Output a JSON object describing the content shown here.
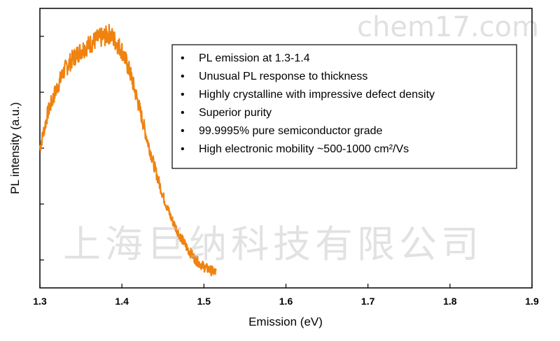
{
  "chart_data": {
    "type": "line",
    "title": "",
    "xlabel": "Emission (eV)",
    "ylabel": "PL intensity (a.u.)",
    "xlim": [
      1.3,
      1.9
    ],
    "ylim": [
      0,
      1.0
    ],
    "x_ticks": [
      "1.3",
      "1.4",
      "1.5",
      "1.6",
      "1.7",
      "1.8",
      "1.9"
    ],
    "y_tick_values": [
      0.1,
      0.3,
      0.5,
      0.7,
      0.9
    ],
    "y_tick_labels_shown": false,
    "grid": false,
    "series": [
      {
        "color": "#f0820f",
        "x": [
          1.3,
          1.31,
          1.32,
          1.33,
          1.34,
          1.35,
          1.36,
          1.37,
          1.38,
          1.385,
          1.39,
          1.4,
          1.41,
          1.42,
          1.43,
          1.44,
          1.45,
          1.46,
          1.47,
          1.48,
          1.49,
          1.5,
          1.51,
          1.515
        ],
        "y": [
          0.5,
          0.63,
          0.71,
          0.78,
          0.82,
          0.85,
          0.87,
          0.89,
          0.9,
          0.91,
          0.89,
          0.85,
          0.77,
          0.66,
          0.54,
          0.43,
          0.33,
          0.25,
          0.19,
          0.14,
          0.1,
          0.075,
          0.06,
          0.055
        ]
      }
    ],
    "annotation": {
      "items": [
        "PL emission at 1.3-1.4",
        "Unusual PL response to thickness",
        "Highly crystalline with impressive defect density",
        "Superior purity",
        "99.9995% pure semiconductor grade",
        "High electronic mobility ~500-1000 cm²/Vs"
      ],
      "bullet": "•",
      "placement": "top-right"
    }
  },
  "watermarks": {
    "site": "chem17.com",
    "company": "上海巨纳科技有限公司"
  }
}
